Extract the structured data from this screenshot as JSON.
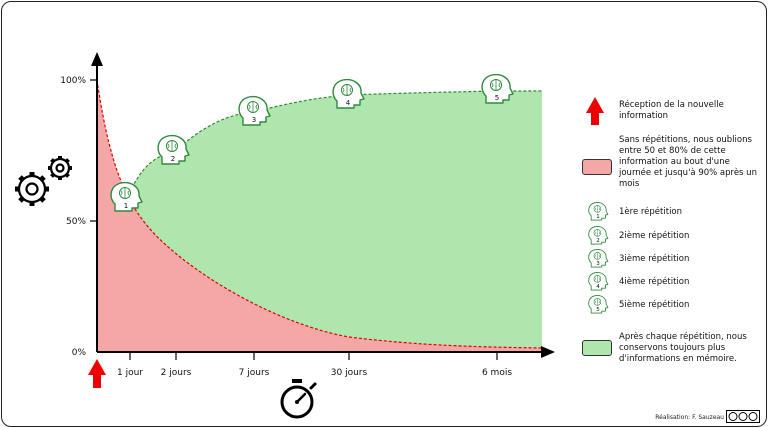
{
  "colors": {
    "forget_fill": "#f5a6a6",
    "retain_fill": "#aee6ae",
    "curve_red": "#e10000",
    "curve_green": "#2e8b2e",
    "icon_green": "#2e8b3d",
    "arrow_red": "#ee0000"
  },
  "axes": {
    "y_ticks": [
      "100%",
      "50%",
      "0%"
    ],
    "x_ticks": [
      "1 jour",
      "2 jours",
      "7 jours",
      "30 jours",
      "6 mois"
    ]
  },
  "repetitions": [
    "1",
    "2",
    "3",
    "4",
    "5"
  ],
  "legend": {
    "reception": "Réception de la nouvelle information",
    "forget": "Sans répétitions, nous oublions entre 50 et 80% de cette information au bout d'une journée et jusqu'à 90% après un mois",
    "rep1": "1ère répétition",
    "rep2": "2ième répétition",
    "rep3": "3ième répétition",
    "rep4": "4ième répétition",
    "rep5": "5ième répétition",
    "retain": "Après chaque répétition, nous conservons toujours plus d'informations en mémoire."
  },
  "credit": "Réalisation: F. Sauzeau",
  "icons": {
    "gears": "gears-icon",
    "stopwatch": "stopwatch-icon",
    "head": "head-brain-icon",
    "license": "cc-license-icon"
  }
}
